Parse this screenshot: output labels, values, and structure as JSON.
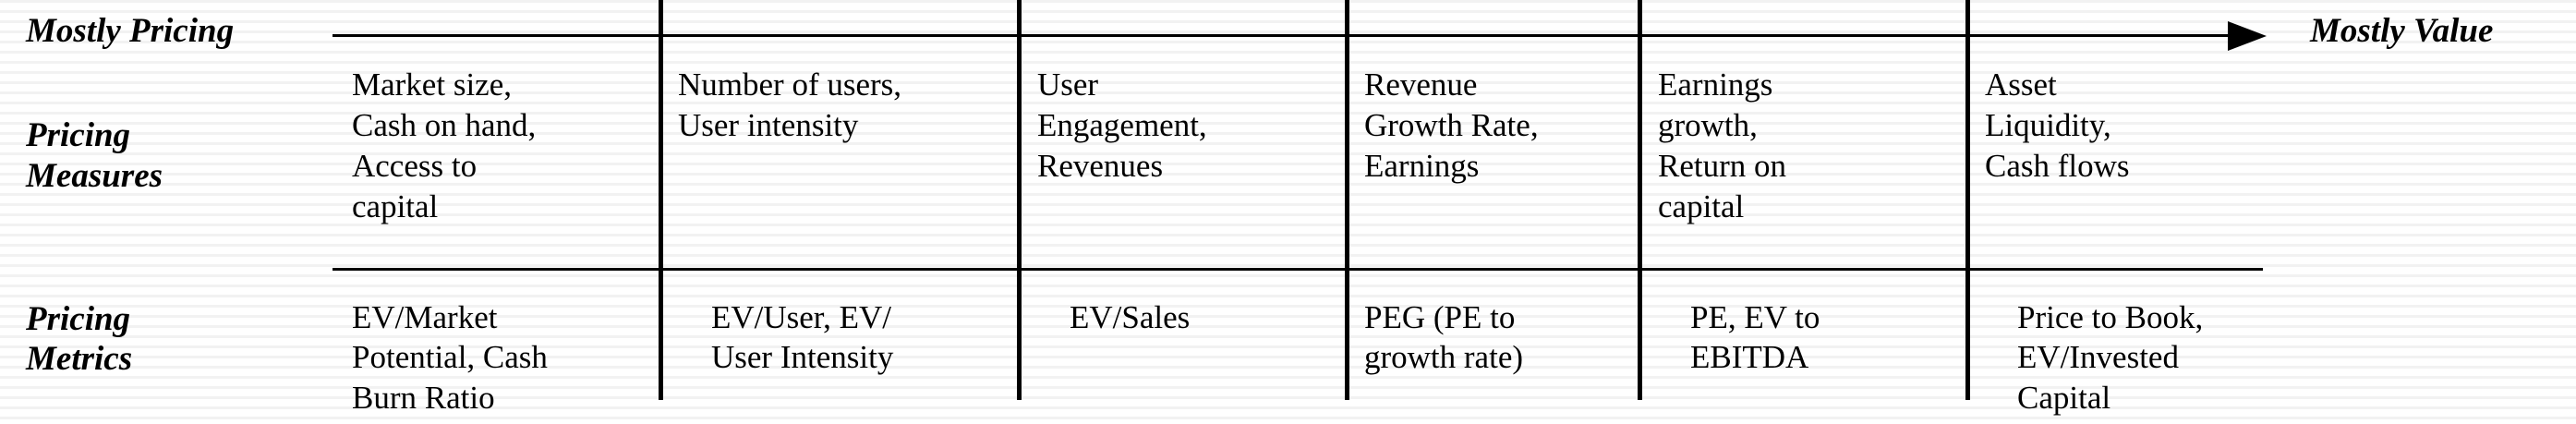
{
  "header": {
    "left_label": "Mostly Pricing",
    "right_label": "Mostly Value"
  },
  "rows": {
    "measures_label": [
      "Pricing",
      "Measures"
    ],
    "metrics_label": [
      "Pricing",
      "Metrics"
    ]
  },
  "columns": [
    {
      "measures": [
        "Market size,",
        "Cash on hand,",
        "Access to",
        "capital"
      ],
      "metrics": [
        "EV/Market",
        "Potential, Cash",
        "Burn Ratio"
      ]
    },
    {
      "measures": [
        "Number of users,",
        "User intensity"
      ],
      "metrics": [
        "EV/User, EV/",
        "User Intensity"
      ]
    },
    {
      "measures": [
        "User",
        "Engagement,",
        "Revenues"
      ],
      "metrics": [
        "EV/Sales"
      ]
    },
    {
      "measures": [
        "Revenue",
        "Growth Rate,",
        "Earnings"
      ],
      "metrics": [
        "PEG (PE to",
        "growth rate)"
      ]
    },
    {
      "measures": [
        "Earnings",
        "growth,",
        "Return on",
        "capital"
      ],
      "metrics": [
        "PE, EV to",
        "EBITDA"
      ]
    },
    {
      "measures": [
        "Asset",
        "Liquidity,",
        "Cash flows"
      ],
      "metrics": [
        "Price to Book,",
        "EV/Invested",
        "Capital"
      ]
    }
  ]
}
